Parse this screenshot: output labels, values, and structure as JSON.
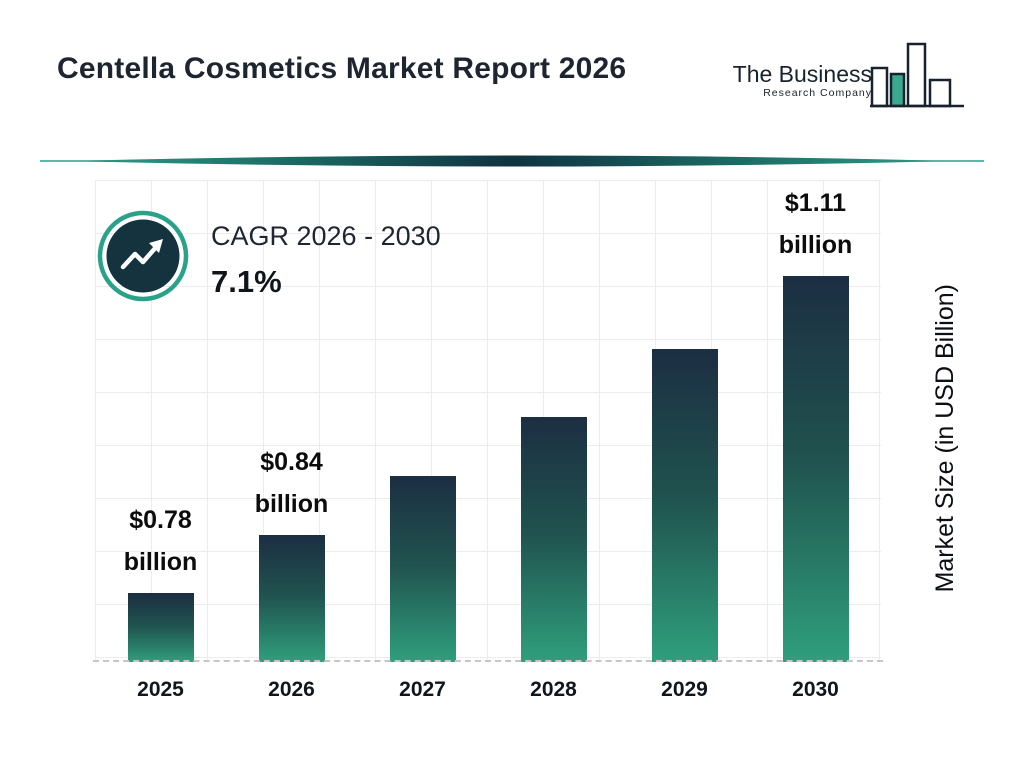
{
  "header": {
    "title": "Centella Cosmetics Market Report 2026",
    "logo": {
      "line1": "The Business",
      "line2": "Research Company",
      "icon": "bar-chart-icon"
    }
  },
  "cagr": {
    "label": "CAGR 2026 - 2030",
    "value": "7.1%",
    "icon": "trend-up-icon"
  },
  "chart_data": {
    "type": "bar",
    "title": "Centella Cosmetics Market Size 2025-2030",
    "categories": [
      "2025",
      "2026",
      "2027",
      "2028",
      "2029",
      "2030"
    ],
    "values": [
      0.78,
      0.84,
      0.9,
      0.96,
      1.03,
      1.11
    ],
    "bar_labels": [
      {
        "amount": "$0.78",
        "unit": "billion"
      },
      {
        "amount": "$0.84",
        "unit": "billion"
      },
      null,
      null,
      null,
      {
        "amount": "$1.11",
        "unit": "billion"
      }
    ],
    "xlabel": "",
    "ylabel": "Market Size (in USD Billion)",
    "ylim": [
      0.71,
      1.2
    ],
    "grid": true,
    "legend": "none",
    "colors": {
      "bar_top": "#1c2e42",
      "bar_mid": "#20534f",
      "bar_bottom": "#2f9f7c",
      "accent_teal": "#2aa189",
      "dark_navy": "#14333f"
    }
  }
}
